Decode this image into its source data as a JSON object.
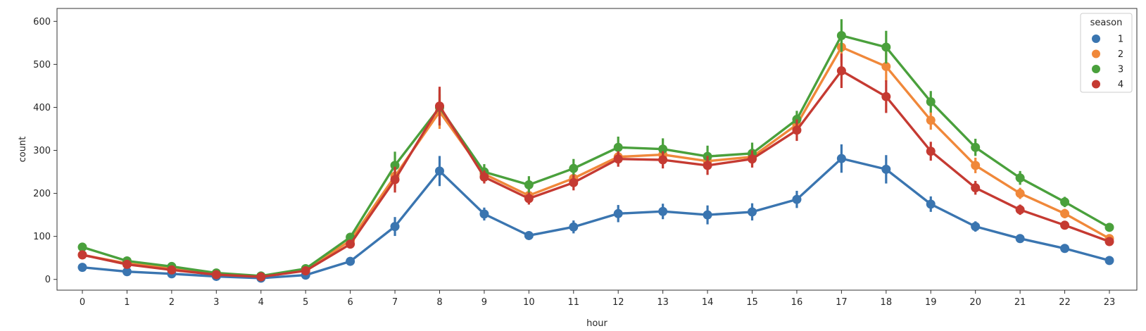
{
  "chart_data": {
    "type": "line",
    "xlabel": "hour",
    "ylabel": "count",
    "ylim": [
      -25,
      630
    ],
    "yticks": [
      0,
      100,
      200,
      300,
      400,
      500,
      600
    ],
    "categories": [
      "0",
      "1",
      "2",
      "3",
      "4",
      "5",
      "6",
      "7",
      "8",
      "9",
      "10",
      "11",
      "12",
      "13",
      "14",
      "15",
      "16",
      "17",
      "18",
      "19",
      "20",
      "21",
      "22",
      "23"
    ],
    "legend": {
      "title": "season",
      "position": "top-right"
    },
    "grid": false,
    "series": [
      {
        "name": "1",
        "color": "#3a75b0",
        "values": [
          28,
          18,
          13,
          7,
          3,
          10,
          42,
          123,
          252,
          152,
          102,
          122,
          153,
          158,
          150,
          157,
          186,
          281,
          256,
          175,
          123,
          95,
          72,
          44
        ],
        "err": [
          4,
          3,
          3,
          2,
          1,
          2,
          6,
          22,
          35,
          15,
          10,
          15,
          20,
          18,
          22,
          20,
          20,
          33,
          33,
          18,
          12,
          9,
          6,
          4
        ]
      },
      {
        "name": "2",
        "color": "#f0883a",
        "values": [
          57,
          37,
          27,
          13,
          7,
          23,
          90,
          240,
          390,
          245,
          195,
          235,
          285,
          290,
          275,
          285,
          360,
          540,
          495,
          370,
          265,
          200,
          153,
          95
        ],
        "err": [
          5,
          4,
          4,
          2,
          1,
          3,
          9,
          28,
          40,
          18,
          16,
          20,
          18,
          22,
          20,
          20,
          22,
          35,
          35,
          22,
          18,
          13,
          11,
          7
        ]
      },
      {
        "name": "3",
        "color": "#4aa03c",
        "values": [
          75,
          43,
          30,
          15,
          8,
          25,
          98,
          265,
          400,
          250,
          220,
          258,
          307,
          303,
          286,
          293,
          372,
          567,
          540,
          413,
          307,
          236,
          180,
          121
        ],
        "err": [
          6,
          5,
          4,
          3,
          1,
          3,
          10,
          32,
          42,
          18,
          20,
          22,
          25,
          25,
          25,
          25,
          20,
          38,
          38,
          25,
          20,
          16,
          12,
          8
        ]
      },
      {
        "name": "4",
        "color": "#c53a32",
        "values": [
          57,
          35,
          22,
          11,
          6,
          20,
          82,
          232,
          403,
          238,
          188,
          225,
          280,
          278,
          265,
          280,
          347,
          485,
          425,
          298,
          213,
          162,
          126,
          88
        ],
        "err": [
          5,
          4,
          3,
          2,
          1,
          3,
          9,
          30,
          45,
          15,
          14,
          18,
          18,
          20,
          22,
          20,
          25,
          40,
          38,
          22,
          16,
          12,
          9,
          7
        ]
      }
    ]
  }
}
